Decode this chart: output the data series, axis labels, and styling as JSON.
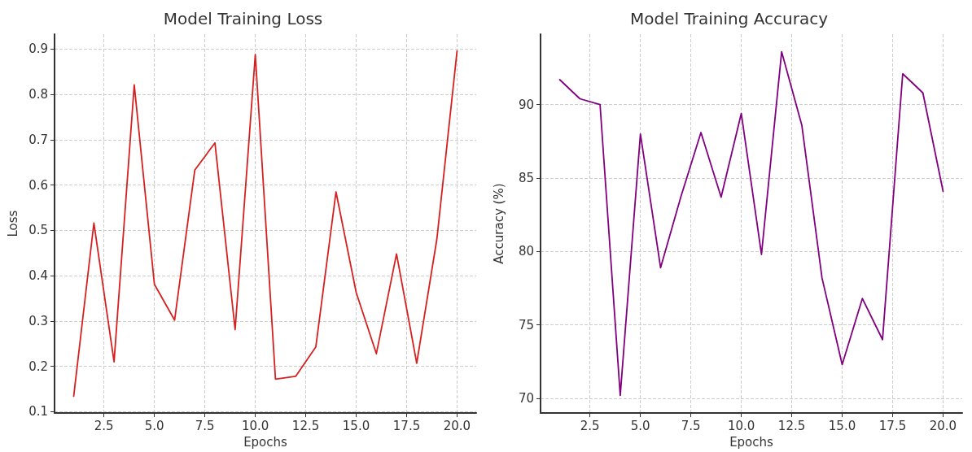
{
  "chart_data": [
    {
      "type": "line",
      "title": "Model Training Loss",
      "xlabel": "Epochs",
      "ylabel": "Loss",
      "x": [
        1,
        2,
        3,
        4,
        5,
        6,
        7,
        8,
        9,
        10,
        11,
        12,
        13,
        14,
        15,
        16,
        17,
        18,
        19,
        20
      ],
      "series": [
        {
          "color": "#d62020",
          "values": [
            0.134,
            0.516,
            0.21,
            0.821,
            0.381,
            0.302,
            0.633,
            0.693,
            0.281,
            0.888,
            0.172,
            0.178,
            0.243,
            0.585,
            0.363,
            0.228,
            0.448,
            0.207,
            0.481,
            0.896
          ]
        }
      ],
      "xlim": [
        0.05,
        20.95
      ],
      "xticks": [
        {
          "value": 2.5,
          "label": "2.5"
        },
        {
          "value": 5,
          "label": "5.0"
        },
        {
          "value": 7.5,
          "label": "7.5"
        },
        {
          "value": 10,
          "label": "10.0"
        },
        {
          "value": 12.5,
          "label": "12.5"
        },
        {
          "value": 15,
          "label": "15.0"
        },
        {
          "value": 17.5,
          "label": "17.5"
        },
        {
          "value": 20,
          "label": "20.0"
        }
      ],
      "ylim": [
        0.097,
        0.933
      ],
      "yticks": [
        0.1,
        0.2,
        0.3,
        0.4,
        0.5,
        0.6,
        0.7,
        0.8,
        0.9
      ],
      "grid": true,
      "marker": "none",
      "line_style": "solid"
    },
    {
      "type": "line",
      "title": "Model Training Accuracy",
      "xlabel": "Epochs",
      "ylabel": "Accuracy (%)",
      "x": [
        1,
        2,
        3,
        4,
        5,
        6,
        7,
        8,
        9,
        10,
        11,
        12,
        13,
        14,
        15,
        16,
        17,
        18,
        19,
        20
      ],
      "series": [
        {
          "color": "#800080",
          "values": [
            91.7,
            90.4,
            90.0,
            70.2,
            88.0,
            78.9,
            83.7,
            88.1,
            83.7,
            89.4,
            79.8,
            93.6,
            88.6,
            78.2,
            72.3,
            76.8,
            74.0,
            92.1,
            90.8,
            84.1
          ]
        }
      ],
      "xlim": [
        0.05,
        20.95
      ],
      "xticks": [
        {
          "value": 2.5,
          "label": "2.5"
        },
        {
          "value": 5,
          "label": "5.0"
        },
        {
          "value": 7.5,
          "label": "7.5"
        },
        {
          "value": 10,
          "label": "10.0"
        },
        {
          "value": 12.5,
          "label": "12.5"
        },
        {
          "value": 15,
          "label": "15.0"
        },
        {
          "value": 17.5,
          "label": "17.5"
        },
        {
          "value": 20,
          "label": "20.0"
        }
      ],
      "ylim": [
        69.0,
        94.8
      ],
      "yticks": [
        70,
        75,
        80,
        85,
        90
      ],
      "grid": true,
      "marker": "none",
      "line_style": "solid"
    }
  ]
}
